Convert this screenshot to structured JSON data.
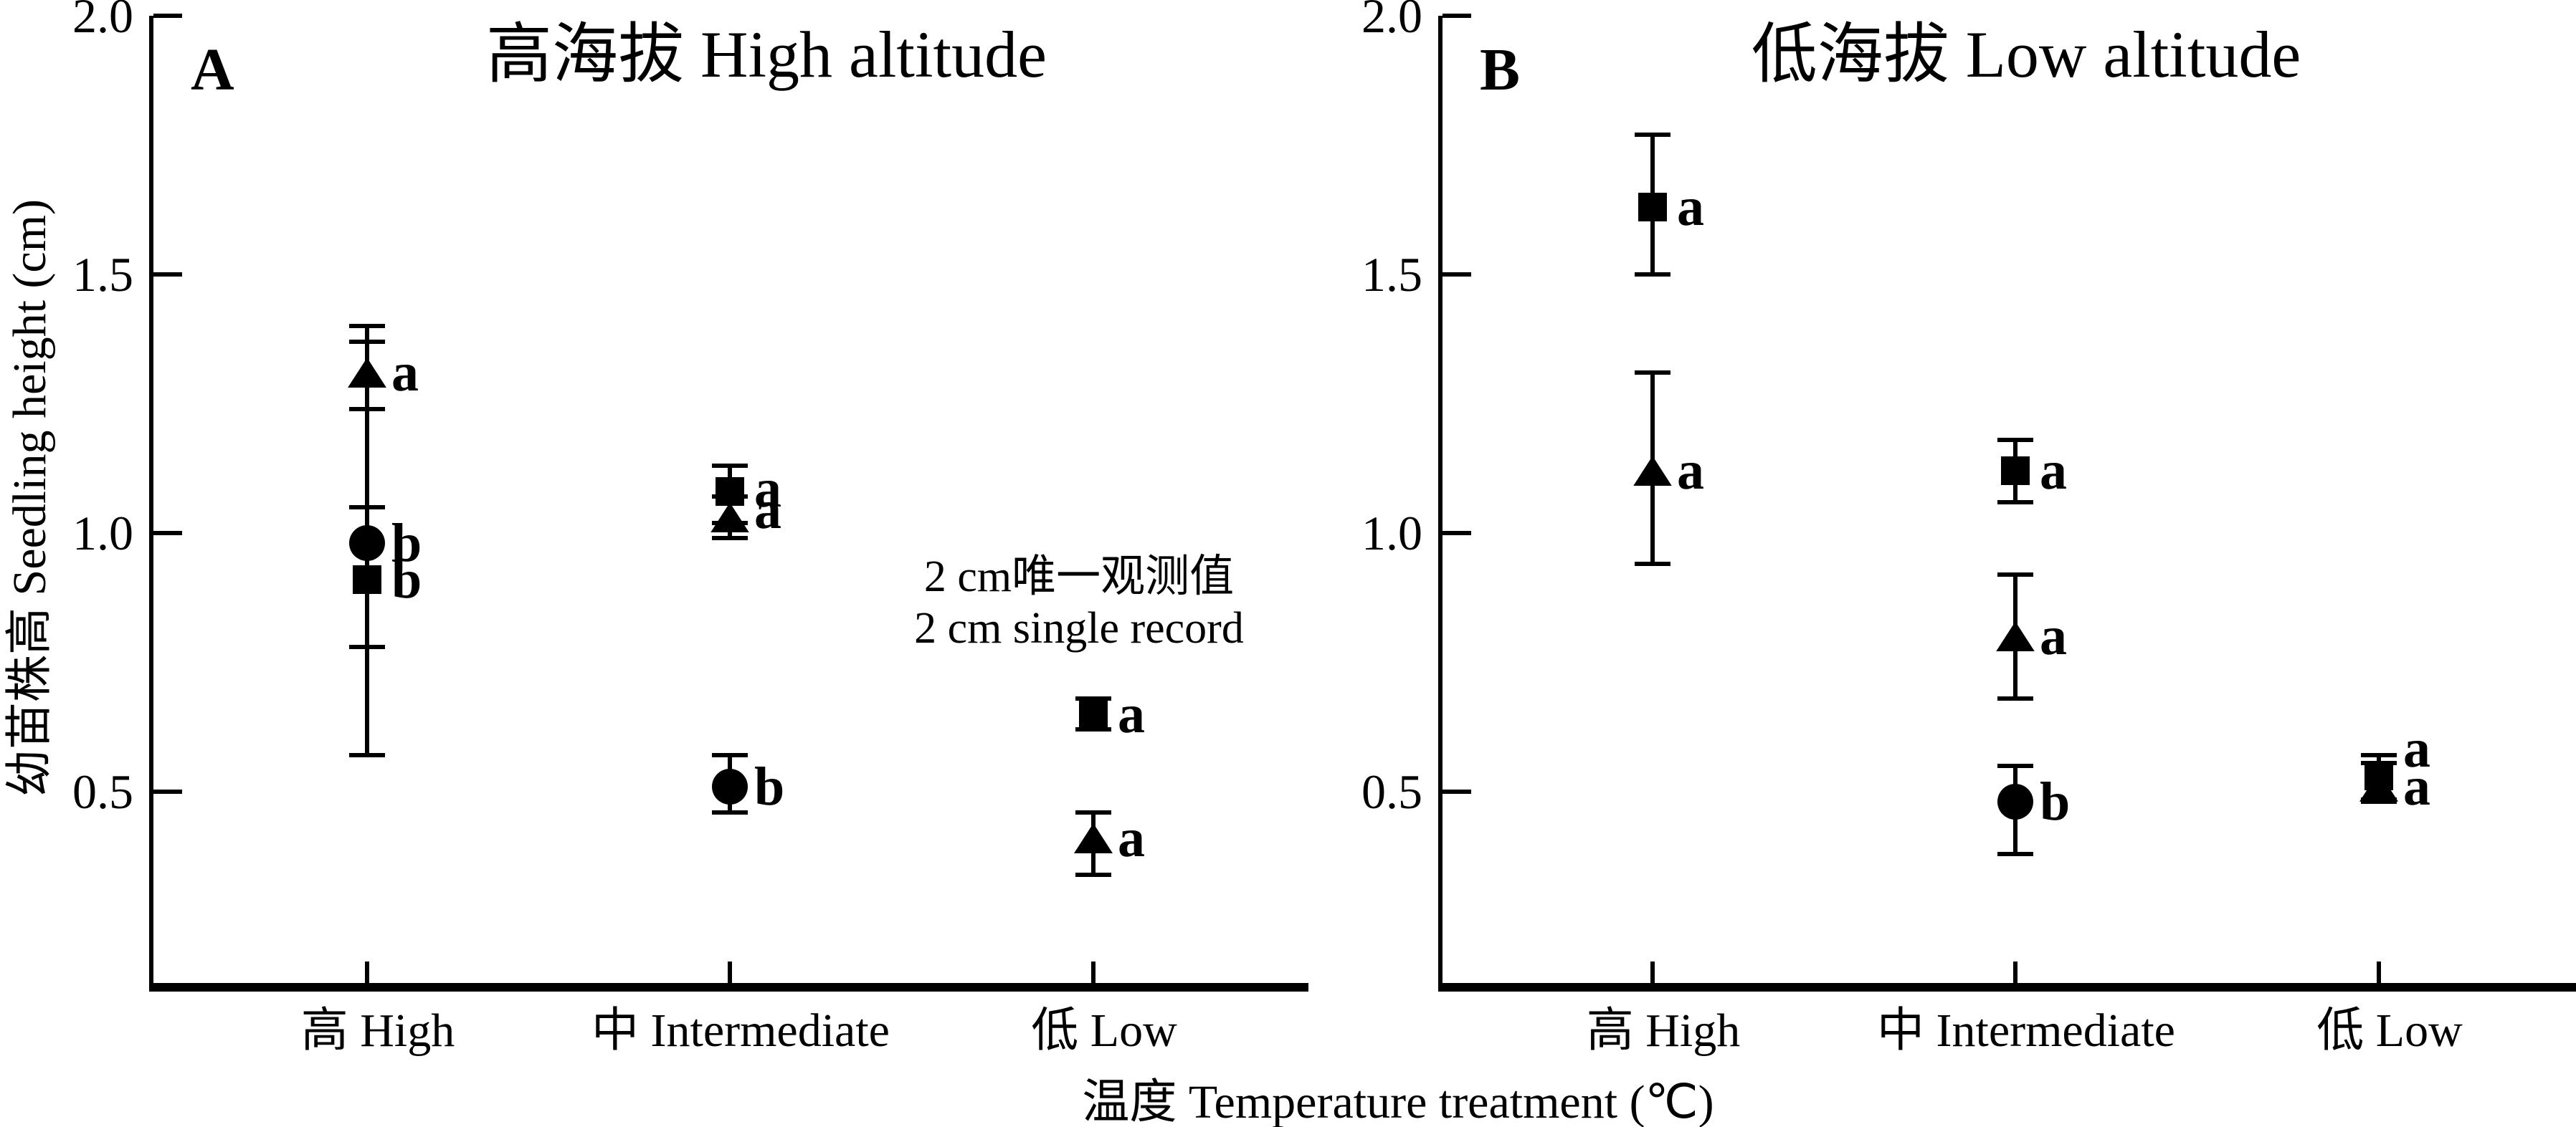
{
  "figure": {
    "background": "#ffffff",
    "foreground": "#000000",
    "y_axis_label": "幼苗株高 Seedling height (cm)",
    "x_axis_label": "温度 Temperature treatment (℃)"
  },
  "chart_data": [
    {
      "type": "scatter",
      "panel_letter": "A",
      "title": "高海拔 High altitude",
      "xlabel": "温度 Temperature treatment (℃)",
      "ylabel": "幼苗株高 Seedling height (cm)",
      "ylim": [
        0.1,
        2.0
      ],
      "yticks": [
        2.0,
        1.5,
        1.0,
        0.5
      ],
      "y_tick_labels": [
        "2.0",
        "1.5",
        "1.0",
        "0.5"
      ],
      "grid": false,
      "categories": [
        "高 High",
        "中 Intermediate",
        "低 Low"
      ],
      "annotation": {
        "lines": [
          "2 cm唯一观测值",
          "2 cm single record"
        ],
        "anchor_category": "低 Low",
        "anchor_y": 0.9
      },
      "series": [
        {
          "name": "circle-series",
          "marker": "circle",
          "points": [
            {
              "category": "高 High",
              "value": 0.98,
              "err_low": 0.57,
              "err_high": 1.37,
              "sig": "b",
              "sig_dy": 0
            },
            {
              "category": "中 Intermediate",
              "value": 0.51,
              "err_low": 0.46,
              "err_high": 0.57,
              "sig": "b",
              "sig_dy": 0
            }
          ]
        },
        {
          "name": "triangle-series",
          "marker": "triangle",
          "points": [
            {
              "category": "高 High",
              "value": 1.31,
              "err_low": 1.24,
              "err_high": 1.4,
              "sig": "a",
              "sig_dy": 0
            },
            {
              "category": "中 Intermediate",
              "value": 1.03,
              "err_low": 0.99,
              "err_high": 1.07,
              "sig": "a",
              "sig_dy": -10
            },
            {
              "category": "低 Low",
              "value": 0.41,
              "err_low": 0.34,
              "err_high": 0.46,
              "sig": "a",
              "sig_dy": 0
            }
          ]
        },
        {
          "name": "square-series",
          "marker": "square",
          "points": [
            {
              "category": "高 High",
              "value": 0.91,
              "err_low": 0.78,
              "err_high": 1.05,
              "sig": "b",
              "sig_dy": 0
            },
            {
              "category": "中 Intermediate",
              "value": 1.08,
              "err_low": 1.02,
              "err_high": 1.13,
              "sig": "a",
              "sig_dy": -4
            },
            {
              "category": "低 Low",
              "value": 0.65,
              "err_low": 0.62,
              "err_high": 0.68,
              "sig": "a",
              "sig_dy": 0
            }
          ]
        }
      ]
    },
    {
      "type": "scatter",
      "panel_letter": "B",
      "title": "低海拔 Low altitude",
      "xlabel": "温度 Temperature treatment (℃)",
      "ylabel": "幼苗株高 Seedling height (cm)",
      "ylim": [
        0.1,
        2.0
      ],
      "yticks": [
        2.0,
        1.5,
        1.0,
        0.5
      ],
      "y_tick_labels": [
        "2.0",
        "1.5",
        "1.0",
        "0.5"
      ],
      "grid": false,
      "categories": [
        "高 High",
        "中 Intermediate",
        "低 Low"
      ],
      "annotation": null,
      "series": [
        {
          "name": "circle-series",
          "marker": "circle",
          "points": [
            {
              "category": "中 Intermediate",
              "value": 0.48,
              "err_low": 0.38,
              "err_high": 0.55,
              "sig": "b",
              "sig_dy": 0
            }
          ]
        },
        {
          "name": "triangle-series",
          "marker": "triangle",
          "points": [
            {
              "category": "高 High",
              "value": 1.12,
              "err_low": 0.94,
              "err_high": 1.31,
              "sig": "a",
              "sig_dy": 0
            },
            {
              "category": "中 Intermediate",
              "value": 0.8,
              "err_low": 0.68,
              "err_high": 0.92,
              "sig": "a",
              "sig_dy": 0
            },
            {
              "category": "低 Low",
              "value": 0.51,
              "err_low": 0.48,
              "err_high": 0.555,
              "sig": "a",
              "sig_dy": 0
            }
          ]
        },
        {
          "name": "square-series",
          "marker": "square",
          "points": [
            {
              "category": "高 High",
              "value": 1.63,
              "err_low": 1.5,
              "err_high": 1.77,
              "sig": "a",
              "sig_dy": 0
            },
            {
              "category": "中 Intermediate",
              "value": 1.12,
              "err_low": 1.06,
              "err_high": 1.18,
              "sig": "a",
              "sig_dy": 0
            },
            {
              "category": "低 Low",
              "value": 0.53,
              "err_low": 0.485,
              "err_high": 0.57,
              "sig": "a",
              "sig_dy": -38
            }
          ]
        }
      ]
    }
  ]
}
